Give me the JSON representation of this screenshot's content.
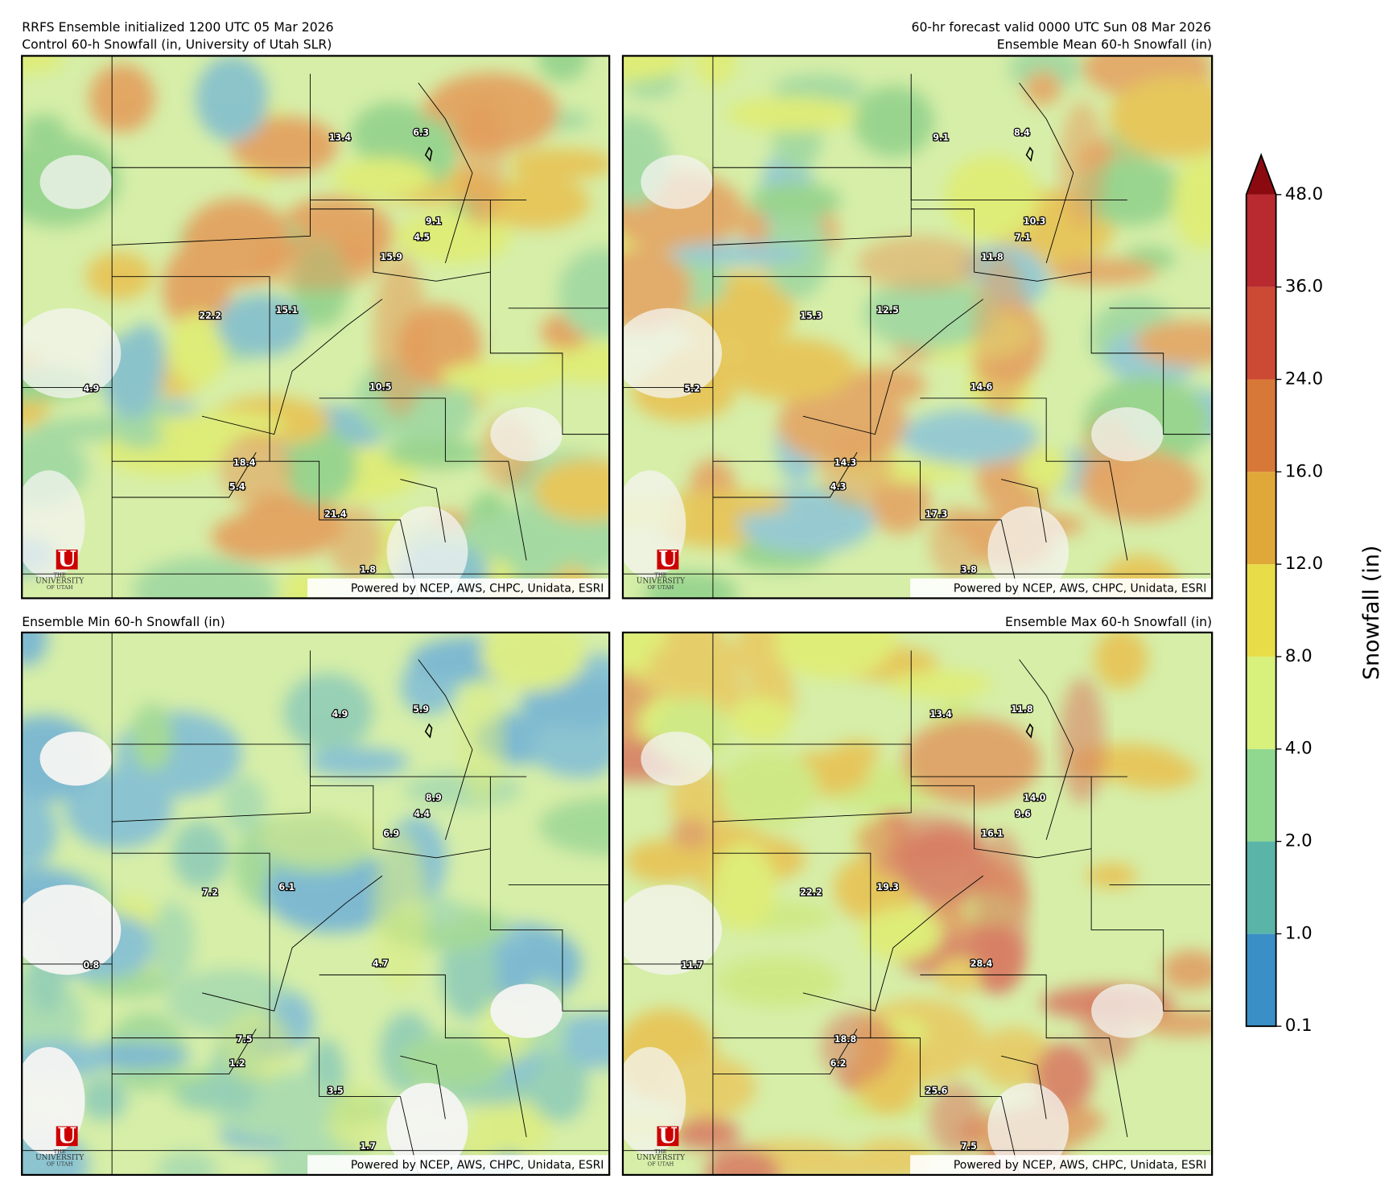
{
  "header": {
    "init": "RRFS Ensemble initialized 1200 UTC 05 Mar 2026",
    "valid": "60-hr forecast valid 0000 UTC Sun 08 Mar 2026"
  },
  "credit": "Powered by NCEP, AWS, CHPC, Unidata, ESRI",
  "logo": {
    "mark": "U",
    "lines": [
      "THE",
      "UNIVERSITY",
      "OF UTAH"
    ]
  },
  "panels": [
    {
      "title": "Control 60-h Snowfall (in, University of Utah SLR)",
      "points": [
        13.4,
        6.3,
        9.1,
        4.5,
        15.9,
        22.2,
        15.1,
        4.9,
        10.5,
        18.4,
        5.4,
        21.4,
        1.8
      ]
    },
    {
      "title": "Ensemble Mean 60-h Snowfall (in)",
      "points": [
        9.1,
        8.4,
        10.3,
        7.1,
        11.8,
        15.3,
        12.5,
        5.2,
        14.6,
        14.3,
        4.3,
        17.3,
        3.8
      ]
    },
    {
      "title": "Ensemble Min 60-h Snowfall (in)",
      "points": [
        4.9,
        5.9,
        8.9,
        4.4,
        6.9,
        7.2,
        6.1,
        0.8,
        4.7,
        7.5,
        1.2,
        3.5,
        1.7
      ]
    },
    {
      "title": "Ensemble Max 60-h Snowfall (in)",
      "points": [
        13.4,
        11.8,
        {
          "value": 14,
          "label": "14.0"
        },
        9.6,
        16.1,
        22.2,
        19.3,
        11.7,
        28.4,
        18.8,
        6.2,
        25.6,
        7.5
      ]
    }
  ],
  "colorbar": {
    "label": "Snowfall (in)",
    "ticks": [
      {
        "value": 0.1,
        "label": "0.1"
      },
      {
        "value": 1,
        "label": "1.0"
      },
      {
        "value": 2,
        "label": "2.0"
      },
      {
        "value": 4,
        "label": "4.0"
      },
      {
        "value": 8,
        "label": "8.0"
      },
      {
        "value": 12,
        "label": "12.0"
      },
      {
        "value": 16,
        "label": "16.0"
      },
      {
        "value": 24,
        "label": "24.0"
      },
      {
        "value": 36,
        "label": "36.0"
      },
      {
        "value": 48,
        "label": "48.0"
      }
    ],
    "colors": [
      "#3a8fc6",
      "#5ab5a8",
      "#90d890",
      "#d8f07c",
      "#e8dd48",
      "#e0a838",
      "#d87838",
      "#cc4a34",
      "#b82a30"
    ],
    "extend_color": "#8b0a10"
  }
}
